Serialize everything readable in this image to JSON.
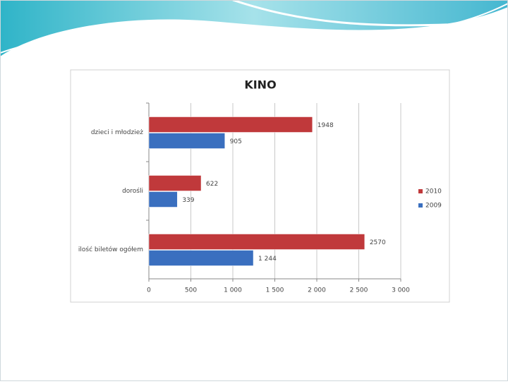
{
  "chart_data": {
    "type": "bar",
    "orientation": "horizontal",
    "title": "KINO",
    "categories": [
      "dzieci i młodzież",
      "dorośli",
      "ilość biletów ogółem"
    ],
    "series": [
      {
        "name": "2010",
        "color": "#c0393b",
        "values": [
          1948,
          622,
          2570
        ]
      },
      {
        "name": "2009",
        "color": "#3a6fbf",
        "values": [
          905,
          339,
          1244
        ],
        "value_labels": [
          "905",
          "339",
          "1 244"
        ]
      }
    ],
    "xlim": [
      0,
      3000
    ],
    "xticks": [
      0,
      500,
      {
        "value": 1000,
        "label": "1 000"
      },
      {
        "value": 1500,
        "label": "1 500"
      },
      {
        "value": 2000,
        "label": "2 000"
      },
      {
        "value": 2500,
        "label": "2 500"
      },
      {
        "value": 3000,
        "label": "3 000"
      }
    ],
    "grid": true,
    "legend": "right"
  }
}
